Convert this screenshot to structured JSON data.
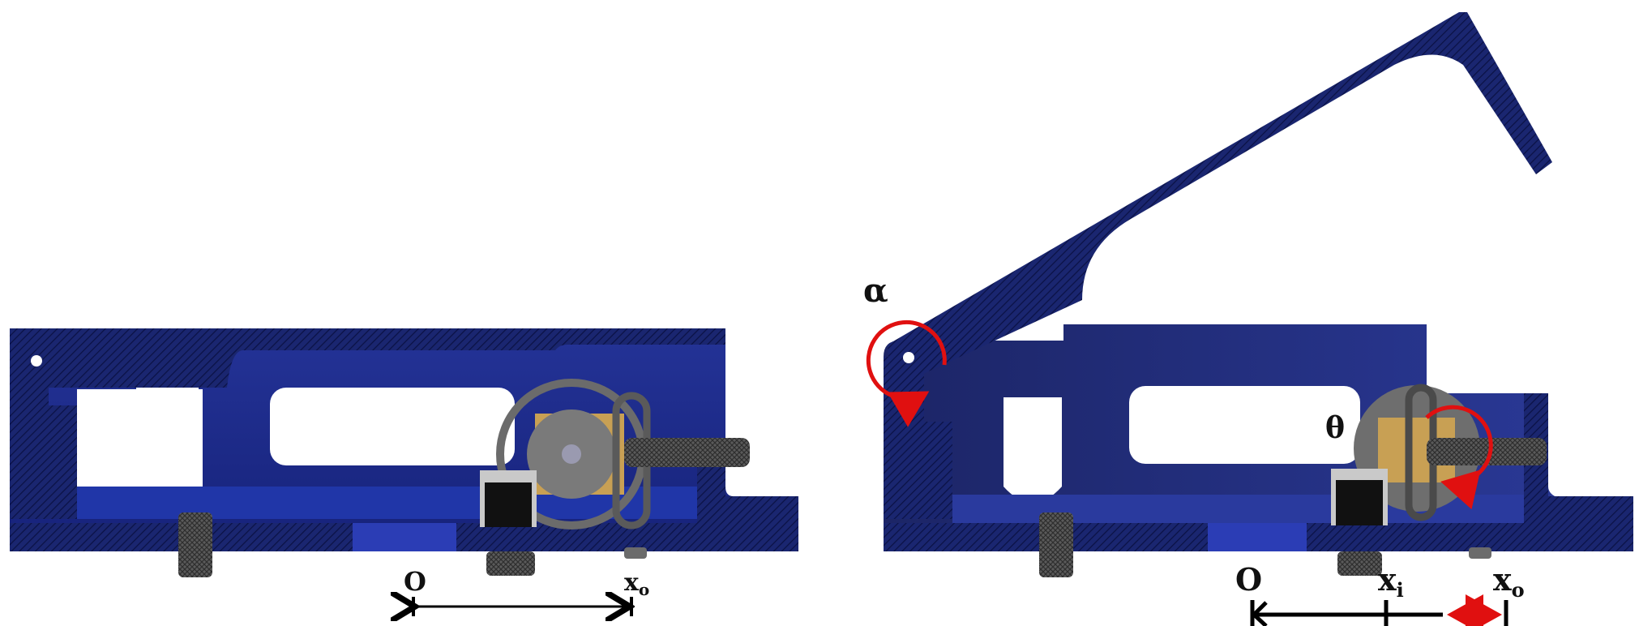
{
  "left_view": {
    "origin_label": "O",
    "xo_label": "x",
    "xo_sub": "o"
  },
  "right_view": {
    "alpha_label": "α",
    "theta_label": "θ",
    "origin_label": "O",
    "xi_label": "x",
    "xi_sub": "i",
    "xo_label": "x",
    "xo_sub": "o"
  },
  "colors": {
    "body": "#1c2b86",
    "body_dark": "#141f66",
    "body_light": "#2a3ea8",
    "hatch": "#0b1245",
    "mechanism": "#6b6b6b",
    "rod": "#4a4a4a",
    "pad": "#c8a054",
    "arrow_black": "#000000",
    "arrow_red": "#e01010"
  }
}
